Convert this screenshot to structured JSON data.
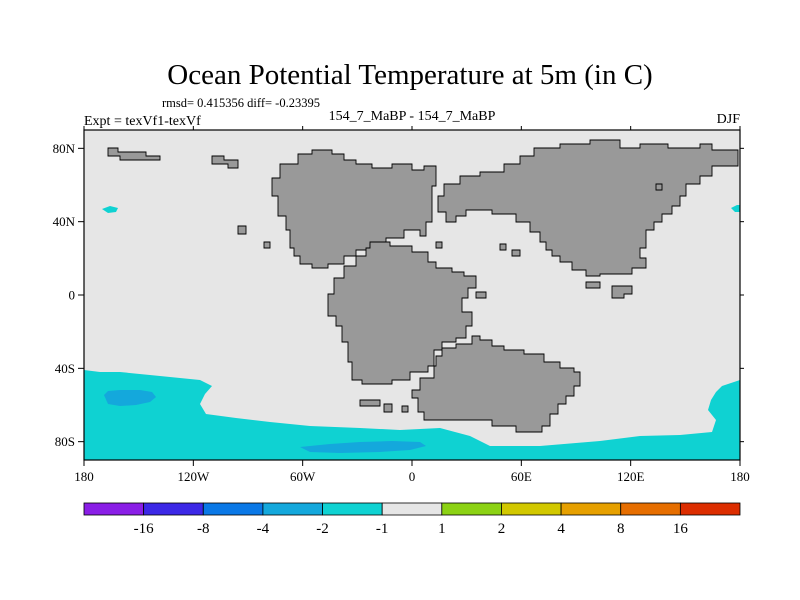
{
  "chart_data": {
    "type": "heatmap",
    "title": "Ocean Potential Temperature at 5m (in C)",
    "stats_line": "rmsd= 0.415356 diff= -0.23395",
    "left_label": "Expt = texVf1-texVf",
    "center_label": "154_7_MaBP - 154_7_MaBP",
    "right_label": "DJF",
    "x_ticks": [
      {
        "value": -180,
        "label": "180"
      },
      {
        "value": -120,
        "label": "120W"
      },
      {
        "value": -60,
        "label": "60W"
      },
      {
        "value": 0,
        "label": "0"
      },
      {
        "value": 60,
        "label": "60E"
      },
      {
        "value": 120,
        "label": "120E"
      },
      {
        "value": 180,
        "label": "180"
      }
    ],
    "y_ticks": [
      {
        "value": 80,
        "label": "80N"
      },
      {
        "value": 40,
        "label": "40N"
      },
      {
        "value": 0,
        "label": "0"
      },
      {
        "value": -40,
        "label": "40S"
      },
      {
        "value": -80,
        "label": "80S"
      }
    ],
    "xlim": [
      -180,
      180
    ],
    "ylim": [
      -90,
      90
    ],
    "colorbar": {
      "colors": [
        "#8a1ee6",
        "#3c28e6",
        "#0a78e6",
        "#14a8dc",
        "#0fd2d2",
        "#e6e6e6",
        "#8cd214",
        "#d2c800",
        "#e6a000",
        "#e66e00",
        "#dc2d00"
      ],
      "boundaries": [
        "-16",
        "-8",
        "-4",
        "-2",
        "-1",
        "1",
        "2",
        "4",
        "8",
        "16"
      ],
      "display_labels": [
        "-16",
        "-8",
        "-4",
        "-2",
        "-1",
        "1",
        "2",
        "4",
        "8",
        "16"
      ]
    },
    "colors": {
      "land": "#999999",
      "ocean_zero": "#e6e6e6",
      "minus_1_to_2": "#0fd2d2",
      "minus_2_to_4": "#14a8dc"
    }
  }
}
